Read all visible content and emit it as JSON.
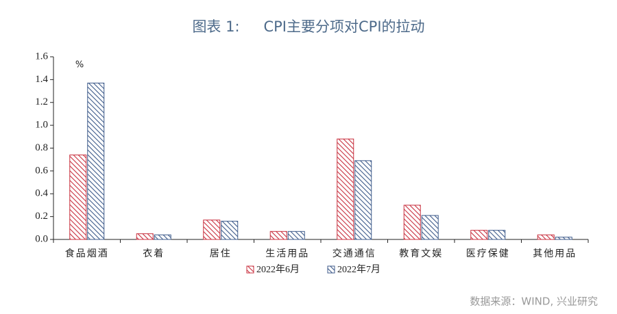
{
  "chart_data": {
    "type": "bar",
    "title_label": "图表 1:",
    "title": "CPI主要分项对CPI的拉动",
    "unit_label": "%",
    "source": "数据来源：WIND, 兴业研究",
    "categories": [
      "食品烟酒",
      "衣着",
      "居住",
      "生活用品",
      "交通通信",
      "教育文娱",
      "医疗保健",
      "其他用品"
    ],
    "series": [
      {
        "name": "2022年6月",
        "color": "#c8303f",
        "values": [
          0.74,
          0.05,
          0.17,
          0.07,
          0.88,
          0.3,
          0.08,
          0.04
        ]
      },
      {
        "name": "2022年7月",
        "color": "#3d5a8a",
        "values": [
          1.37,
          0.04,
          0.16,
          0.07,
          0.69,
          0.21,
          0.08,
          0.02
        ]
      }
    ],
    "ylim": [
      0,
      1.6
    ],
    "yticks": [
      {
        "value": 0,
        "label": "0.0"
      },
      0.2,
      0.4,
      0.6,
      0.8,
      {
        "value": 1,
        "label": "1.0"
      },
      1.2,
      1.4,
      1.6
    ],
    "grid": false,
    "legend": "bottom"
  }
}
